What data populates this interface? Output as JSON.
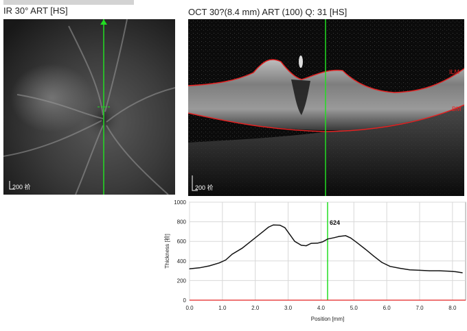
{
  "header": {
    "ir_title": "IR 30° ART [HS]",
    "oct_title": "OCT 30?(8.4 mm) ART (100) Q: 31 [HS]"
  },
  "ir_image": {
    "scale_label": "200 祄"
  },
  "oct_image": {
    "scale_label": "200 祄",
    "labels": {
      "ilm": "ILM",
      "bm": "BM"
    },
    "colors": {
      "layer_line": "#e32222",
      "cursor": "#22dd22"
    }
  },
  "chart_data": {
    "type": "line",
    "xlabel": "Position [mm]",
    "ylabel": "Thickness [祄]",
    "xlim": [
      0,
      8.4
    ],
    "ylim": [
      0,
      1000
    ],
    "x_ticks": [
      "0.0",
      "1.0",
      "2.0",
      "3.0",
      "4.0",
      "5.0",
      "6.0",
      "7.0",
      "8.0"
    ],
    "y_ticks": [
      "0",
      "200",
      "400",
      "600",
      "800",
      "1000"
    ],
    "grid": true,
    "cursor": {
      "x": 4.2,
      "value": 624,
      "label": "624"
    },
    "series": [
      {
        "color": "#111111",
        "points": [
          [
            0.0,
            320
          ],
          [
            0.3,
            330
          ],
          [
            0.6,
            350
          ],
          [
            0.9,
            380
          ],
          [
            1.1,
            410
          ],
          [
            1.3,
            470
          ],
          [
            1.6,
            530
          ],
          [
            1.9,
            610
          ],
          [
            2.2,
            690
          ],
          [
            2.4,
            745
          ],
          [
            2.55,
            768
          ],
          [
            2.75,
            765
          ],
          [
            2.9,
            740
          ],
          [
            3.05,
            670
          ],
          [
            3.2,
            600
          ],
          [
            3.4,
            560
          ],
          [
            3.55,
            555
          ],
          [
            3.7,
            580
          ],
          [
            3.9,
            582
          ],
          [
            4.05,
            595
          ],
          [
            4.2,
            624
          ],
          [
            4.4,
            638
          ],
          [
            4.55,
            650
          ],
          [
            4.75,
            658
          ],
          [
            4.9,
            635
          ],
          [
            5.1,
            585
          ],
          [
            5.35,
            520
          ],
          [
            5.6,
            450
          ],
          [
            5.85,
            385
          ],
          [
            6.1,
            345
          ],
          [
            6.4,
            325
          ],
          [
            6.7,
            310
          ],
          [
            7.0,
            305
          ],
          [
            7.3,
            300
          ],
          [
            7.6,
            300
          ],
          [
            7.9,
            295
          ],
          [
            8.1,
            290
          ],
          [
            8.3,
            280
          ]
        ]
      }
    ]
  }
}
